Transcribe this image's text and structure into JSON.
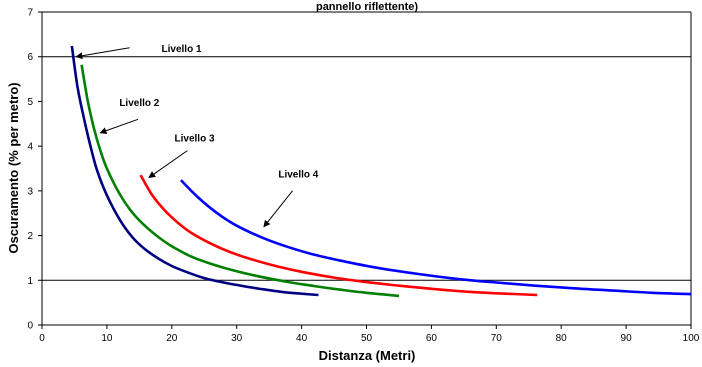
{
  "chart_data": {
    "type": "line",
    "title": "pannello riflettente)",
    "xlabel": "Distanza (Metri)",
    "ylabel": "Oscuramento (% per metro)",
    "xlim": [
      0,
      100
    ],
    "ylim": [
      0,
      7
    ],
    "x_ticks": [
      "0",
      "10",
      "20",
      "30",
      "40",
      "50",
      "60",
      "70",
      "80",
      "90",
      "100"
    ],
    "y_ticks": [
      "0",
      "1",
      "2",
      "3",
      "4",
      "5",
      "6",
      "7"
    ],
    "gridlines_y": [
      1,
      6,
      7
    ],
    "grid": "partial-horizontal",
    "series": [
      {
        "name": "Livello 1",
        "color": "#000080",
        "x": [
          4.6,
          5.5,
          6.5,
          7.5,
          8.5,
          10,
          12,
          14,
          16,
          18,
          20,
          22,
          25,
          28,
          31,
          34,
          37,
          40,
          42.6
        ],
        "y": [
          6.24,
          5.3,
          4.6,
          3.98,
          3.45,
          2.9,
          2.35,
          1.95,
          1.68,
          1.48,
          1.32,
          1.2,
          1.05,
          0.95,
          0.87,
          0.8,
          0.74,
          0.7,
          0.67
        ]
      },
      {
        "name": "Livello 2",
        "color": "#008000",
        "x": [
          6.1,
          7,
          8,
          9,
          10,
          12,
          14,
          16,
          18,
          20,
          23,
          26,
          30,
          34,
          38,
          42,
          46,
          50,
          55
        ],
        "y": [
          5.82,
          5.05,
          4.4,
          3.9,
          3.5,
          2.92,
          2.5,
          2.2,
          1.96,
          1.76,
          1.53,
          1.37,
          1.2,
          1.07,
          0.96,
          0.87,
          0.79,
          0.72,
          0.65
        ]
      },
      {
        "name": "Livello 3",
        "color": "#ff0000",
        "x": [
          15.2,
          17,
          19,
          21,
          23,
          26,
          29,
          32,
          36,
          40,
          45,
          50,
          55,
          60,
          65,
          70,
          76.3
        ],
        "y": [
          3.35,
          2.9,
          2.55,
          2.28,
          2.06,
          1.82,
          1.63,
          1.48,
          1.32,
          1.19,
          1.06,
          0.96,
          0.88,
          0.81,
          0.75,
          0.71,
          0.67
        ]
      },
      {
        "name": "Livello 4",
        "color": "#0000ff",
        "x": [
          21.4,
          24,
          27,
          30,
          34,
          38,
          42,
          47,
          52,
          58,
          64,
          70,
          76,
          82,
          88,
          94,
          100
        ],
        "y": [
          3.24,
          2.86,
          2.5,
          2.22,
          1.95,
          1.74,
          1.57,
          1.41,
          1.27,
          1.14,
          1.03,
          0.95,
          0.88,
          0.82,
          0.77,
          0.72,
          0.69
        ]
      }
    ],
    "annotations": [
      {
        "text": "Livello 1",
        "label_at": [
          21.5,
          6.1
        ],
        "arrow_from": [
          13.5,
          6.2
        ],
        "arrow_to": [
          5.3,
          6.0
        ]
      },
      {
        "text": "Livello 2",
        "label_at": [
          15,
          4.9
        ],
        "arrow_from": [
          14.8,
          4.6
        ],
        "arrow_to": [
          9.0,
          4.3
        ]
      },
      {
        "text": "Livello 3",
        "label_at": [
          23.5,
          4.1
        ],
        "arrow_from": [
          22.4,
          3.9
        ],
        "arrow_to": [
          16.5,
          3.3
        ]
      },
      {
        "text": "Livello 4",
        "label_at": [
          39.5,
          3.3
        ],
        "arrow_from": [
          38.6,
          3.0
        ],
        "arrow_to": [
          34.2,
          2.2
        ]
      }
    ]
  }
}
